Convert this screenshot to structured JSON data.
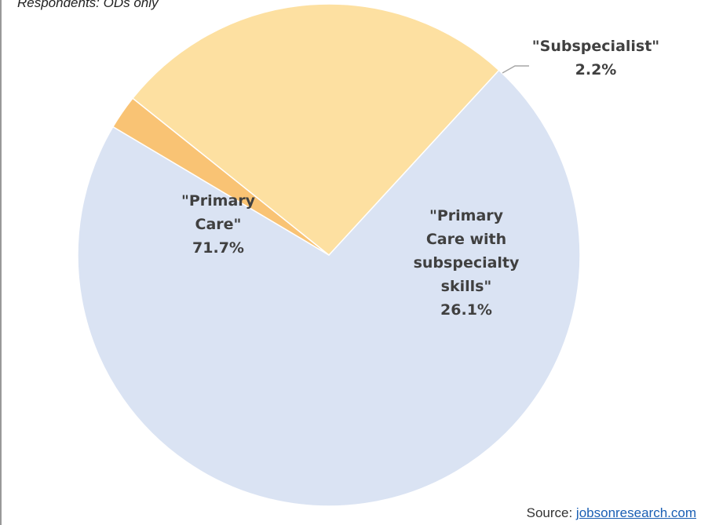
{
  "subtitle": "Respondents: ODs only",
  "chart_data": {
    "type": "pie",
    "title": "",
    "slices": [
      {
        "name": "\"Primary Care\"",
        "label_lines": [
          "\"Primary",
          "Care\""
        ],
        "value": 71.7,
        "value_label": "71.7%",
        "color": "#dae3f3"
      },
      {
        "name": "\"Subspecialist\"",
        "label_lines": [
          "\"Subspecialist\""
        ],
        "value": 2.2,
        "value_label": "2.2%",
        "color": "#f9c374"
      },
      {
        "name": "\"Primary Care with subspecialty skills\"",
        "label_lines": [
          "\"Primary",
          "Care with",
          "subspecialty",
          "skills\""
        ],
        "value": 26.1,
        "value_label": "26.1%",
        "color": "#fde0a1"
      }
    ],
    "start_angle_deg": 42.6,
    "direction": "clockwise"
  },
  "source": {
    "prefix": "Source: ",
    "link_text": "jobsonresearch.com"
  }
}
